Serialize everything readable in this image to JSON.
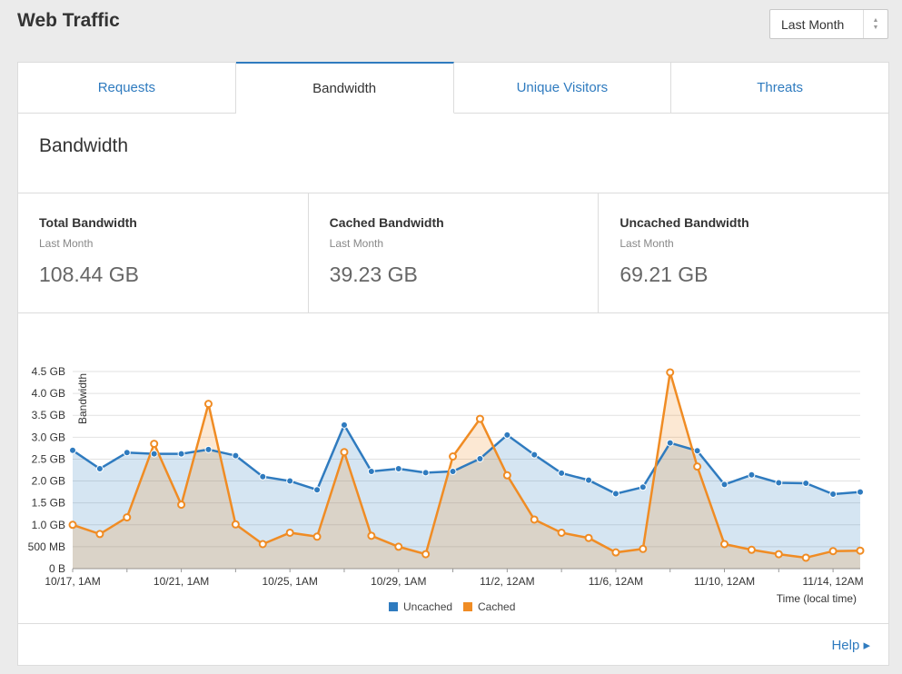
{
  "header": {
    "title": "Web Traffic",
    "range": "Last Month"
  },
  "tabs": [
    {
      "label": "Requests"
    },
    {
      "label": "Bandwidth"
    },
    {
      "label": "Unique Visitors"
    },
    {
      "label": "Threats"
    }
  ],
  "section": {
    "title": "Bandwidth"
  },
  "stats": [
    {
      "title": "Total Bandwidth",
      "period": "Last Month",
      "value": "108.44 GB"
    },
    {
      "title": "Cached Bandwidth",
      "period": "Last Month",
      "value": "39.23 GB"
    },
    {
      "title": "Uncached Bandwidth",
      "period": "Last Month",
      "value": "69.21 GB"
    }
  ],
  "colors": {
    "uncached": "#2f7bbf",
    "cached": "#f08c24",
    "link": "#2f7bbf"
  },
  "chart_data": {
    "type": "area",
    "ylabel": "Bandwidth",
    "xlabel": "Time (local time)",
    "ylim": [
      0,
      4.5
    ],
    "y_ticks": [
      "0 B",
      "500 MB",
      "1.0 GB",
      "1.5 GB",
      "2.0 GB",
      "2.5 GB",
      "3.0 GB",
      "3.5 GB",
      "4.0 GB",
      "4.5 GB"
    ],
    "x_tick_labels": [
      "10/17, 1AM",
      "10/21, 1AM",
      "10/25, 1AM",
      "10/29, 1AM",
      "11/2, 12AM",
      "11/6, 12AM",
      "11/10, 12AM",
      "11/14, 12AM"
    ],
    "legend_position": "bottom-center",
    "series": [
      {
        "name": "Uncached",
        "color": "#2f7bbf",
        "values": [
          2.7,
          2.28,
          2.65,
          2.62,
          2.62,
          2.72,
          2.58,
          2.1,
          2.0,
          1.8,
          3.28,
          2.22,
          2.28,
          2.19,
          2.22,
          2.51,
          3.05,
          2.6,
          2.18,
          2.02,
          1.71,
          1.86,
          2.87,
          2.69,
          1.92,
          2.14,
          1.96,
          1.95,
          1.7,
          1.75
        ]
      },
      {
        "name": "Cached",
        "color": "#f08c24",
        "values": [
          1.0,
          0.79,
          1.17,
          2.85,
          1.46,
          3.76,
          1.01,
          0.56,
          0.82,
          0.73,
          2.66,
          0.75,
          0.5,
          0.33,
          2.56,
          3.42,
          2.13,
          1.12,
          0.82,
          0.7,
          0.37,
          0.45,
          4.48,
          2.33,
          0.56,
          0.43,
          0.33,
          0.25,
          0.4,
          0.41
        ]
      }
    ]
  },
  "footer": {
    "help": "Help ▸"
  }
}
